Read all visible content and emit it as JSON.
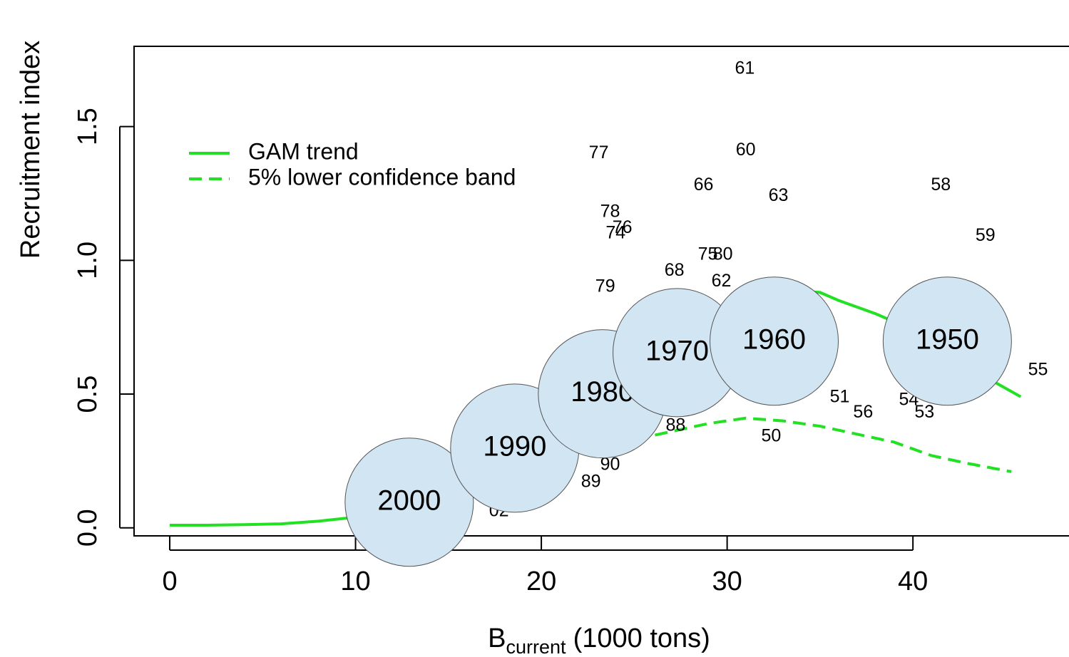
{
  "chart_data": {
    "type": "scatter",
    "xlabel": {
      "main": "B",
      "sub": "current",
      "rest": "(1000 tons)"
    },
    "ylabel": "Recruitment index",
    "xlim": [
      -1.92,
      48.4
    ],
    "ylim": [
      -0.03,
      1.8
    ],
    "xticks": [
      0,
      10,
      20,
      30,
      40
    ],
    "yticks": [
      {
        "value": 0,
        "label": "0.0"
      },
      {
        "value": 0.5,
        "label": "0.5"
      },
      {
        "value": 1,
        "label": "1.0"
      },
      {
        "value": 1.5,
        "label": "1.5"
      }
    ],
    "points": {
      "labels": [
        "61",
        "60",
        "77",
        "66",
        "63",
        "58",
        "78",
        "76",
        "74",
        "59",
        "75",
        "80",
        "68",
        "79",
        "62",
        "55",
        "51",
        "56",
        "54",
        "53",
        "88",
        "50",
        "90",
        "89",
        "02"
      ],
      "x": [
        30.95,
        31.0,
        23.09,
        28.73,
        32.76,
        41.5,
        23.7,
        24.36,
        24.0,
        43.9,
        28.96,
        29.77,
        27.16,
        23.44,
        29.69,
        46.73,
        36.06,
        37.32,
        39.78,
        40.62,
        27.23,
        32.37,
        23.7,
        22.67,
        17.72
      ],
      "y": [
        1.715,
        1.41,
        1.4,
        1.28,
        1.24,
        1.28,
        1.18,
        1.12,
        1.1,
        1.09,
        1.02,
        1.02,
        0.96,
        0.9,
        0.92,
        0.588,
        0.487,
        0.43,
        0.477,
        0.43,
        0.38,
        0.34,
        0.234,
        0.17,
        0.061
      ]
    },
    "series": [
      {
        "name": "GAM trend",
        "color": "#22e022",
        "dashed": false,
        "x": [
          0,
          2,
          4,
          6,
          8,
          10,
          12,
          14,
          16,
          18,
          20,
          22,
          24,
          26,
          28,
          30,
          32,
          34,
          35,
          36,
          38,
          40,
          42,
          44,
          45.8
        ],
        "y": [
          0.01,
          0.01,
          0.012,
          0.015,
          0.025,
          0.04,
          0.07,
          0.12,
          0.18,
          0.24,
          0.28,
          0.33,
          0.42,
          0.55,
          0.68,
          0.8,
          0.86,
          0.885,
          0.88,
          0.85,
          0.8,
          0.74,
          0.66,
          0.56,
          0.49
        ]
      },
      {
        "name": "5% lower confidence band",
        "color": "#22e022",
        "dashed": true,
        "x": [
          23,
          25,
          27,
          29,
          31,
          33,
          35,
          37,
          39,
          41,
          43,
          45.3
        ],
        "y": [
          0.29,
          0.33,
          0.36,
          0.39,
          0.41,
          0.4,
          0.38,
          0.35,
          0.32,
          0.27,
          0.24,
          0.21
        ]
      }
    ],
    "annotations": [
      {
        "label": "2000",
        "x": 12.89,
        "y": 0.096
      },
      {
        "label": "1990",
        "x": 18.57,
        "y": 0.298
      },
      {
        "label": "1980",
        "x": 23.29,
        "y": 0.501
      },
      {
        "label": "1970",
        "x": 27.31,
        "y": 0.655
      },
      {
        "label": "1960",
        "x": 32.53,
        "y": 0.698
      },
      {
        "label": "1950",
        "x": 41.85,
        "y": 0.698
      }
    ],
    "annotation_color": "#d1e5f3",
    "legend": "upper left"
  }
}
